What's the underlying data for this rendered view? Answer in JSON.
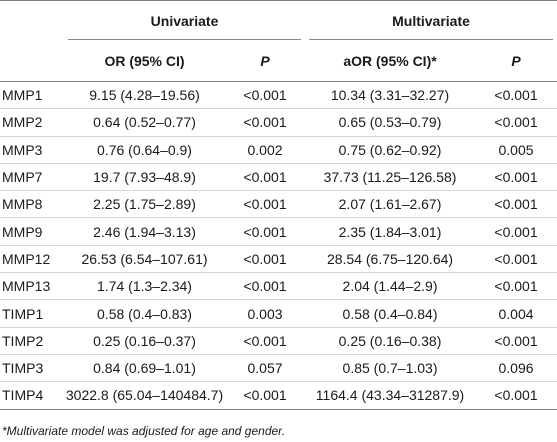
{
  "headers": {
    "group_univariate": "Univariate",
    "group_multivariate": "Multivariate",
    "or_ci": "OR (95% CI)",
    "p_uni": "P",
    "aor_ci": "aOR (95% CI)*",
    "p_multi": "P"
  },
  "rows": [
    {
      "name": "MMP1",
      "or": "9.15 (4.28–19.56)",
      "p1": "<0.001",
      "aor": "10.34 (3.31–32.27)",
      "p2": "<0.001"
    },
    {
      "name": "MMP2",
      "or": "0.64 (0.52–0.77)",
      "p1": "<0.001",
      "aor": "0.65 (0.53–0.79)",
      "p2": "<0.001"
    },
    {
      "name": "MMP3",
      "or": "0.76 (0.64–0.9)",
      "p1": "0.002",
      "aor": "0.75 (0.62–0.92)",
      "p2": "0.005"
    },
    {
      "name": "MMP7",
      "or": "19.7 (7.93–48.9)",
      "p1": "<0.001",
      "aor": "37.73 (11.25–126.58)",
      "p2": "<0.001"
    },
    {
      "name": "MMP8",
      "or": "2.25 (1.75–2.89)",
      "p1": "<0.001",
      "aor": "2.07 (1.61–2.67)",
      "p2": "<0.001"
    },
    {
      "name": "MMP9",
      "or": "2.46 (1.94–3.13)",
      "p1": "<0.001",
      "aor": "2.35 (1.84–3.01)",
      "p2": "<0.001"
    },
    {
      "name": "MMP12",
      "or": "26.53 (6.54–107.61)",
      "p1": "<0.001",
      "aor": "28.54 (6.75–120.64)",
      "p2": "<0.001"
    },
    {
      "name": "MMP13",
      "or": "1.74 (1.3–2.34)",
      "p1": "<0.001",
      "aor": "2.04 (1.44–2.9)",
      "p2": "<0.001"
    },
    {
      "name": "TIMP1",
      "or": "0.58 (0.4–0.83)",
      "p1": "0.003",
      "aor": "0.58 (0.4–0.84)",
      "p2": "0.004"
    },
    {
      "name": "TIMP2",
      "or": "0.25 (0.16–0.37)",
      "p1": "<0.001",
      "aor": "0.25 (0.16–0.38)",
      "p2": "<0.001"
    },
    {
      "name": "TIMP3",
      "or": "0.84 (0.69–1.01)",
      "p1": "0.057",
      "aor": "0.85 (0.7–1.03)",
      "p2": "0.096"
    },
    {
      "name": "TIMP4",
      "or": "3022.8 (65.04–140484.7)",
      "p1": "<0.001",
      "aor": "1164.4 (43.34–31287.9)",
      "p2": "<0.001"
    }
  ],
  "footnote": "*Multivariate model was adjusted for age and gender."
}
